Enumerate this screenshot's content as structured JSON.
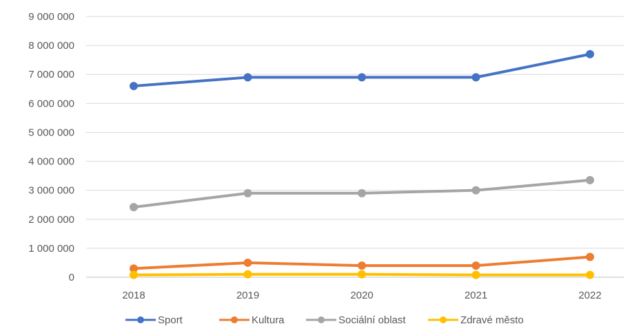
{
  "chart_data": {
    "type": "line",
    "title": "",
    "xlabel": "",
    "ylabel": "",
    "categories": [
      "2018",
      "2019",
      "2020",
      "2021",
      "2022"
    ],
    "ylim": [
      0,
      9000000
    ],
    "yticks": [
      0,
      1000000,
      2000000,
      3000000,
      4000000,
      5000000,
      6000000,
      7000000,
      8000000,
      9000000
    ],
    "ytick_labels": [
      "0",
      "1 000 000",
      "2 000 000",
      "3 000 000",
      "4 000 000",
      "5 000 000",
      "6 000 000",
      "7 000 000",
      "8 000 000",
      "9 000 000"
    ],
    "grid": true,
    "legend_position": "bottom",
    "series": [
      {
        "name": "Sport",
        "color": "#4472c4",
        "values": [
          6600000,
          6900000,
          6900000,
          6900000,
          7700000
        ]
      },
      {
        "name": "Kultura",
        "color": "#ed7d31",
        "values": [
          300000,
          500000,
          400000,
          400000,
          700000
        ]
      },
      {
        "name": "Sociální oblast",
        "color": "#a5a5a5",
        "values": [
          2420000,
          2900000,
          2900000,
          3000000,
          3350000
        ]
      },
      {
        "name": "Zdravé město",
        "color": "#ffc000",
        "values": [
          80000,
          100000,
          100000,
          80000,
          80000
        ]
      }
    ]
  }
}
